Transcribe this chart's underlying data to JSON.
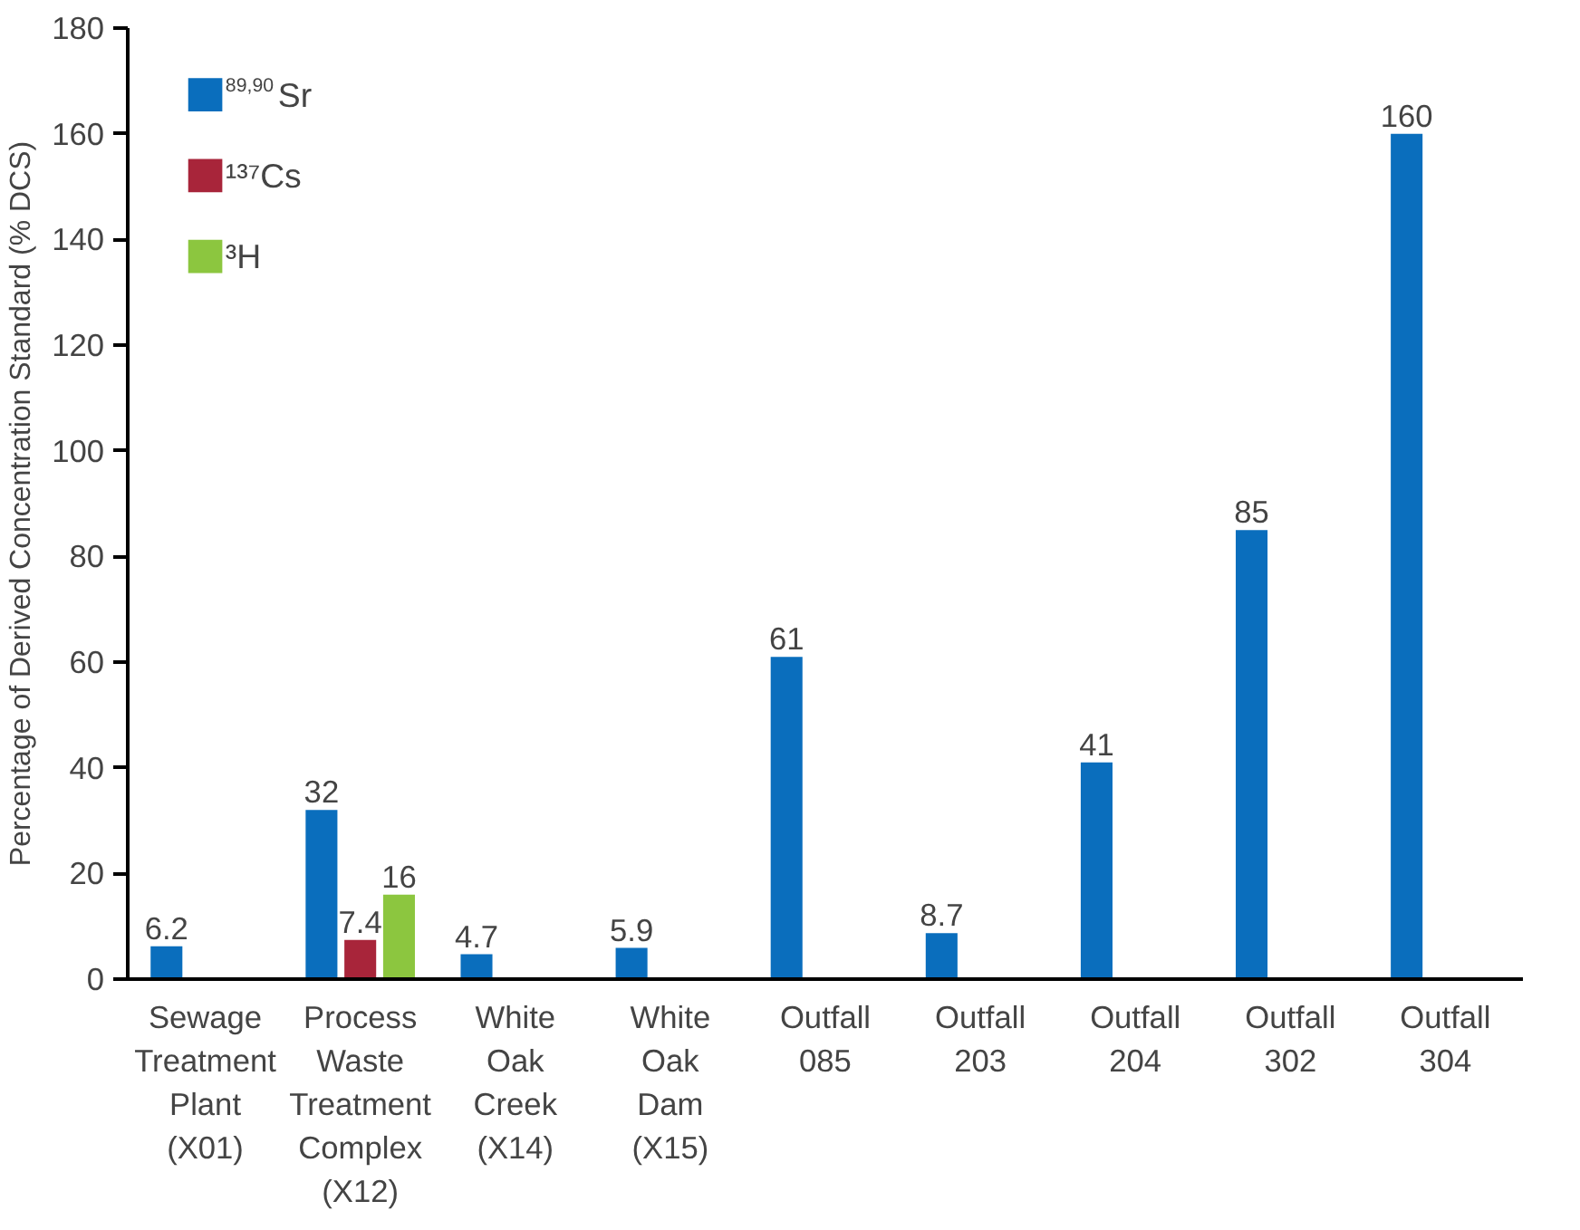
{
  "chart_data": {
    "type": "bar",
    "ylabel": "Percentage of Derived Concentration Standard (% DCS)",
    "categories": [
      "Sewage Treatment Plant (X01)",
      "Process Waste Treatment Complex (X12)",
      "White Oak Creek (X14)",
      "White Oak Dam (X15)",
      "Outfall 085",
      "Outfall 203",
      "Outfall 204",
      "Outfall 302",
      "Outfall 304"
    ],
    "series": [
      {
        "name": "$^{89,90}$Sr",
        "color": "#0a6ebd",
        "values": [
          6.2,
          32,
          4.7,
          5.9,
          61,
          8.7,
          41,
          85,
          160
        ]
      },
      {
        "name": "¹³⁷Cs",
        "color": "#a8253a",
        "values": [
          null,
          7.4,
          null,
          null,
          null,
          null,
          null,
          null,
          null
        ]
      },
      {
        "name": "³H",
        "color": "#8cc63f",
        "values": [
          null,
          16,
          null,
          null,
          null,
          null,
          null,
          null,
          null
        ]
      }
    ],
    "ylim": [
      0,
      180
    ],
    "yticks": [
      0,
      20,
      40,
      60,
      80,
      100,
      120,
      140,
      160,
      180
    ],
    "grid": false,
    "legend": "top left",
    "data_labels": true
  }
}
